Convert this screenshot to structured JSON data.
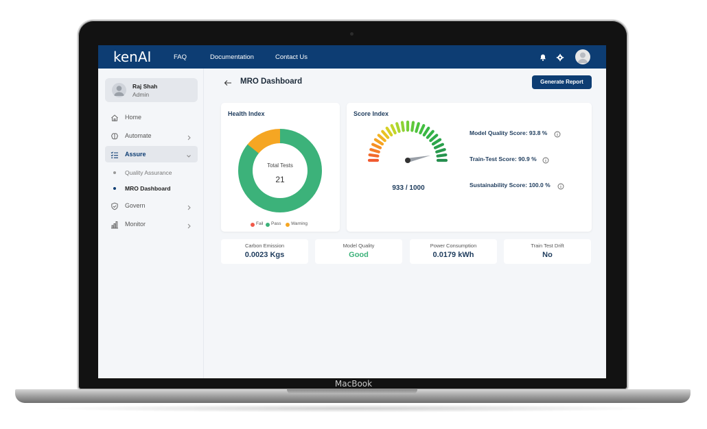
{
  "device": {
    "brand": "MacBook"
  },
  "topbar": {
    "logo": "kenAI",
    "nav": [
      "FAQ",
      "Documentation",
      "Contact Us"
    ],
    "icons": [
      "bell-icon",
      "gear-icon",
      "user-avatar-icon"
    ],
    "color": "#0d3d73"
  },
  "sidebar": {
    "user": {
      "name": "Raj Shah",
      "role": "Admin"
    },
    "items": [
      {
        "label": "Home",
        "icon": "home-icon"
      },
      {
        "label": "Automate",
        "icon": "brain-icon"
      },
      {
        "label": "Assure",
        "icon": "checklist-icon",
        "active": true
      },
      {
        "label": "Govern",
        "icon": "shield-icon"
      },
      {
        "label": "Monitor",
        "icon": "bar-chart-icon"
      }
    ],
    "subitems": [
      {
        "label": "Quality Assurance"
      },
      {
        "label": "MRO Dashboard",
        "active": true
      }
    ]
  },
  "page": {
    "title": "MRO Dashboard",
    "generate_button": "Generate Report"
  },
  "health": {
    "title": "Health Index",
    "center_label": "Total Tests",
    "total": "21",
    "legend": [
      {
        "label": "Fail",
        "color": "#f05a4a"
      },
      {
        "label": "Pass",
        "color": "#3cb27a"
      },
      {
        "label": "Warning",
        "color": "#f5a623"
      }
    ],
    "chart_data": {
      "type": "pie",
      "labels": [
        "Fail",
        "Pass",
        "Warning"
      ],
      "values": [
        0,
        18,
        3
      ]
    }
  },
  "score": {
    "title": "Score Index",
    "gauge_value": "933 / 1000",
    "gauge_fraction": 0.933,
    "rows": [
      {
        "label": "Model Quality Score: 93.8 %"
      },
      {
        "label": "Train-Test Score: 90.9 %"
      },
      {
        "label": "Sustainability Score: 100.0 %"
      }
    ]
  },
  "stats": [
    {
      "label": "Carbon Emission",
      "value": "0.0023 Kgs"
    },
    {
      "label": "Model Quality",
      "value": "Good"
    },
    {
      "label": "Power Consumption",
      "value": "0.0179 kWh"
    },
    {
      "label": "Train Test Drift",
      "value": "No"
    }
  ]
}
